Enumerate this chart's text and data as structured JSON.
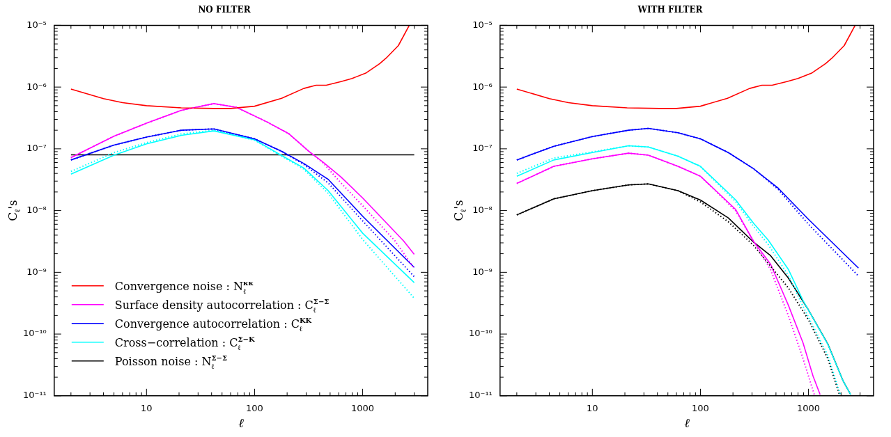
{
  "chart_data": [
    {
      "type": "line",
      "title": "NO FILTER",
      "xlabel": "ℓ",
      "ylabel": "C$_{ℓ}$'s",
      "log": "xy",
      "legend": "bottom left",
      "marker": "none",
      "line_style": "solid",
      "xlim": [
        1.4,
        4000
      ],
      "ylim": [
        1e-11,
        1e-05
      ],
      "xticks": [
        {
          "value": 2,
          "label": null
        },
        {
          "value": 3,
          "label": null
        },
        {
          "value": 4,
          "label": null
        },
        {
          "value": 5,
          "label": null
        },
        {
          "value": 6,
          "label": null
        },
        {
          "value": 7,
          "label": null
        },
        {
          "value": 8,
          "label": null
        },
        {
          "value": 9,
          "label": null
        },
        10,
        {
          "value": 20,
          "label": null
        },
        {
          "value": 30,
          "label": null
        },
        {
          "value": 40,
          "label": null
        },
        {
          "value": 50,
          "label": null
        },
        {
          "value": 60,
          "label": null
        },
        {
          "value": 70,
          "label": null
        },
        {
          "value": 80,
          "label": null
        },
        {
          "value": 90,
          "label": null
        },
        100,
        {
          "value": 200,
          "label": null
        },
        {
          "value": 300,
          "label": null
        },
        {
          "value": 400,
          "label": null
        },
        {
          "value": 500,
          "label": null
        },
        {
          "value": 600,
          "label": null
        },
        {
          "value": 700,
          "label": null
        },
        {
          "value": 800,
          "label": null
        },
        {
          "value": 900,
          "label": null
        },
        1000,
        {
          "value": 2000,
          "label": null
        },
        {
          "value": 3000,
          "label": null
        }
      ],
      "yticks": [
        {
          "value": 1e-11,
          "label": "10⁻¹¹"
        },
        {
          "value": 2e-11,
          "label": null
        },
        {
          "value": 3e-11,
          "label": null
        },
        {
          "value": 4e-11,
          "label": null
        },
        {
          "value": 5e-11,
          "label": null
        },
        {
          "value": 6e-11,
          "label": null
        },
        {
          "value": 7e-11,
          "label": null
        },
        {
          "value": 8e-11,
          "label": null
        },
        {
          "value": 9e-11,
          "label": null
        },
        {
          "value": 1e-10,
          "label": "10⁻¹⁰"
        },
        {
          "value": 2e-10,
          "label": null
        },
        {
          "value": 3e-10,
          "label": null
        },
        {
          "value": 4e-10,
          "label": null
        },
        {
          "value": 5e-10,
          "label": null
        },
        {
          "value": 6e-10,
          "label": null
        },
        {
          "value": 7e-10,
          "label": null
        },
        {
          "value": 8e-10,
          "label": null
        },
        {
          "value": 9e-10,
          "label": null
        },
        {
          "value": 1e-09,
          "label": "10⁻⁹"
        },
        {
          "value": 2e-09,
          "label": null
        },
        {
          "value": 3e-09,
          "label": null
        },
        {
          "value": 4e-09,
          "label": null
        },
        {
          "value": 5e-09,
          "label": null
        },
        {
          "value": 6e-09,
          "label": null
        },
        {
          "value": 7e-09,
          "label": null
        },
        {
          "value": 8e-09,
          "label": null
        },
        {
          "value": 9e-09,
          "label": null
        },
        {
          "value": 1e-08,
          "label": "10⁻⁸"
        },
        {
          "value": 2e-08,
          "label": null
        },
        {
          "value": 3e-08,
          "label": null
        },
        {
          "value": 4e-08,
          "label": null
        },
        {
          "value": 5e-08,
          "label": null
        },
        {
          "value": 6e-08,
          "label": null
        },
        {
          "value": 7e-08,
          "label": null
        },
        {
          "value": 8e-08,
          "label": null
        },
        {
          "value": 9e-08,
          "label": null
        },
        {
          "value": 1e-07,
          "label": "10⁻⁷"
        },
        {
          "value": 2e-07,
          "label": null
        },
        {
          "value": 3e-07,
          "label": null
        },
        {
          "value": 4e-07,
          "label": null
        },
        {
          "value": 5e-07,
          "label": null
        },
        {
          "value": 6e-07,
          "label": null
        },
        {
          "value": 7e-07,
          "label": null
        },
        {
          "value": 8e-07,
          "label": null
        },
        {
          "value": 9e-07,
          "label": null
        },
        {
          "value": 1e-06,
          "label": "10⁻⁶"
        },
        {
          "value": 2e-06,
          "label": null
        },
        {
          "value": 3e-06,
          "label": null
        },
        {
          "value": 4e-06,
          "label": null
        },
        {
          "value": 5e-06,
          "label": null
        },
        {
          "value": 6e-06,
          "label": null
        },
        {
          "value": 7e-06,
          "label": null
        },
        {
          "value": 8e-06,
          "label": null
        },
        {
          "value": 9e-06,
          "label": null
        },
        {
          "value": 1e-05,
          "label": "10⁻⁵"
        }
      ],
      "series": [
        {
          "name": "Convergence noise : N$_{ℓ}$$^{κκ}$",
          "color": "#ff0000",
          "x": [
            2,
            4,
            6,
            10,
            21,
            42,
            60,
            100,
            178,
            285,
            370,
            460,
            630,
            800,
            1080,
            1440,
            1650,
            2140,
            2700
          ],
          "values": [
            9.3e-07,
            6.5e-07,
            5.6e-07,
            5e-07,
            4.6e-07,
            4.5e-07,
            4.5e-07,
            4.9e-07,
            6.6e-07,
            9.5e-07,
            1.07e-06,
            1.07e-06,
            1.23e-06,
            1.38e-06,
            1.7e-06,
            2.4e-06,
            2.95e-06,
            4.7e-06,
            1e-05
          ]
        },
        {
          "name": "Surface density autocorrelation : C$_{ℓ}$$^{Σ−Σ}$",
          "color": "#ff00ff",
          "x": [
            2,
            5,
            10,
            21,
            42,
            68,
            129,
            208,
            316,
            435,
            630,
            1000,
            2400,
            3000
          ],
          "values": [
            7.2e-08,
            1.6e-07,
            2.6e-07,
            4.2e-07,
            5.4e-07,
            4.7e-07,
            2.75e-07,
            1.75e-07,
            9.2e-08,
            6e-08,
            3.5e-08,
            1.6e-08,
            3.2e-09,
            1.95e-09
          ]
        },
        {
          "name": "Convergence autocorrelation : C$_{ℓ}$$^{KK}$",
          "color": "#0000ff",
          "x": [
            2,
            5,
            10,
            21,
            42,
            100,
            178,
            285,
            480,
            1000,
            3000
          ],
          "values": [
            6.6e-08,
            1.15e-07,
            1.55e-07,
            2e-07,
            2.1e-07,
            1.45e-07,
            9.1e-08,
            5.8e-08,
            3.2e-08,
            8.1e-09,
            1.2e-09
          ]
        },
        {
          "name": "Cross−correlation : C$_{ℓ}$$^{Σ−K}$",
          "color": "#00ffff",
          "x": [
            2,
            5,
            10,
            21,
            42,
            100,
            178,
            285,
            480,
            1000,
            3000
          ],
          "values": [
            3.9e-08,
            7.9e-08,
            1.2e-07,
            1.65e-07,
            1.95e-07,
            1.4e-07,
            7.8e-08,
            4.9e-08,
            2.1e-08,
            4.3e-09,
            6.8e-10
          ]
        },
        {
          "name": "Poisson noise : N$_{ℓ}$$^{Σ−Σ}$",
          "color": "#000000",
          "x": [
            2,
            3000
          ],
          "values": [
            8e-08,
            8e-08
          ]
        },
        {
          "color": "#ff00ff",
          "line_style": "dotted",
          "x": [
            2,
            5,
            10,
            21,
            42,
            68,
            129,
            208,
            316,
            435,
            630,
            1000,
            2000,
            3000
          ],
          "values": [
            7.2e-08,
            1.6e-07,
            2.6e-07,
            4.2e-07,
            5.4e-07,
            4.7e-07,
            2.75e-07,
            1.75e-07,
            9.2e-08,
            5.8e-08,
            2.8e-08,
            1.2e-08,
            3.2e-09,
            1.15e-09
          ]
        },
        {
          "color": "#0000ff",
          "line_style": "dotted",
          "x": [
            2,
            5,
            10,
            21,
            42,
            100,
            178,
            285,
            480,
            1000,
            3000
          ],
          "values": [
            6.6e-08,
            1.15e-07,
            1.55e-07,
            2e-07,
            2.1e-07,
            1.45e-07,
            9.1e-08,
            5.6e-08,
            2.8e-08,
            6.8e-09,
            8.5e-10
          ]
        },
        {
          "color": "#00ffff",
          "line_style": "dotted",
          "x": [
            2,
            5,
            10,
            21,
            42,
            100,
            178,
            285,
            480,
            1000,
            3000
          ],
          "values": [
            4.3e-08,
            8.7e-08,
            1.26e-07,
            1.74e-07,
            2e-07,
            1.38e-07,
            7.6e-08,
            4.7e-08,
            1.9e-08,
            3.4e-09,
            3.8e-10
          ]
        }
      ]
    },
    {
      "type": "line",
      "title": "WITH FILTER",
      "xlabel": "ℓ",
      "ylabel": "C$_{ℓ}$'s",
      "log": "xy",
      "marker": "none",
      "line_style": "solid",
      "xlim": [
        1.4,
        4000
      ],
      "ylim": [
        1e-11,
        1e-05
      ],
      "xticks": [
        {
          "value": 2,
          "label": null
        },
        {
          "value": 3,
          "label": null
        },
        {
          "value": 4,
          "label": null
        },
        {
          "value": 5,
          "label": null
        },
        {
          "value": 6,
          "label": null
        },
        {
          "value": 7,
          "label": null
        },
        {
          "value": 8,
          "label": null
        },
        {
          "value": 9,
          "label": null
        },
        10,
        {
          "value": 20,
          "label": null
        },
        {
          "value": 30,
          "label": null
        },
        {
          "value": 40,
          "label": null
        },
        {
          "value": 50,
          "label": null
        },
        {
          "value": 60,
          "label": null
        },
        {
          "value": 70,
          "label": null
        },
        {
          "value": 80,
          "label": null
        },
        {
          "value": 90,
          "label": null
        },
        100,
        {
          "value": 200,
          "label": null
        },
        {
          "value": 300,
          "label": null
        },
        {
          "value": 400,
          "label": null
        },
        {
          "value": 500,
          "label": null
        },
        {
          "value": 600,
          "label": null
        },
        {
          "value": 700,
          "label": null
        },
        {
          "value": 800,
          "label": null
        },
        {
          "value": 900,
          "label": null
        },
        1000,
        {
          "value": 2000,
          "label": null
        },
        {
          "value": 3000,
          "label": null
        }
      ],
      "yticks": [
        {
          "value": 1e-11,
          "label": "10⁻¹¹"
        },
        {
          "value": 2e-11,
          "label": null
        },
        {
          "value": 3e-11,
          "label": null
        },
        {
          "value": 4e-11,
          "label": null
        },
        {
          "value": 5e-11,
          "label": null
        },
        {
          "value": 6e-11,
          "label": null
        },
        {
          "value": 7e-11,
          "label": null
        },
        {
          "value": 8e-11,
          "label": null
        },
        {
          "value": 9e-11,
          "label": null
        },
        {
          "value": 1e-10,
          "label": "10⁻¹⁰"
        },
        {
          "value": 2e-10,
          "label": null
        },
        {
          "value": 3e-10,
          "label": null
        },
        {
          "value": 4e-10,
          "label": null
        },
        {
          "value": 5e-10,
          "label": null
        },
        {
          "value": 6e-10,
          "label": null
        },
        {
          "value": 7e-10,
          "label": null
        },
        {
          "value": 8e-10,
          "label": null
        },
        {
          "value": 9e-10,
          "label": null
        },
        {
          "value": 1e-09,
          "label": "10⁻⁹"
        },
        {
          "value": 2e-09,
          "label": null
        },
        {
          "value": 3e-09,
          "label": null
        },
        {
          "value": 4e-09,
          "label": null
        },
        {
          "value": 5e-09,
          "label": null
        },
        {
          "value": 6e-09,
          "label": null
        },
        {
          "value": 7e-09,
          "label": null
        },
        {
          "value": 8e-09,
          "label": null
        },
        {
          "value": 9e-09,
          "label": null
        },
        {
          "value": 1e-08,
          "label": "10⁻⁸"
        },
        {
          "value": 2e-08,
          "label": null
        },
        {
          "value": 3e-08,
          "label": null
        },
        {
          "value": 4e-08,
          "label": null
        },
        {
          "value": 5e-08,
          "label": null
        },
        {
          "value": 6e-08,
          "label": null
        },
        {
          "value": 7e-08,
          "label": null
        },
        {
          "value": 8e-08,
          "label": null
        },
        {
          "value": 9e-08,
          "label": null
        },
        {
          "value": 1e-07,
          "label": "10⁻⁷"
        },
        {
          "value": 2e-07,
          "label": null
        },
        {
          "value": 3e-07,
          "label": null
        },
        {
          "value": 4e-07,
          "label": null
        },
        {
          "value": 5e-07,
          "label": null
        },
        {
          "value": 6e-07,
          "label": null
        },
        {
          "value": 7e-07,
          "label": null
        },
        {
          "value": 8e-07,
          "label": null
        },
        {
          "value": 9e-07,
          "label": null
        },
        {
          "value": 1e-06,
          "label": "10⁻⁶"
        },
        {
          "value": 2e-06,
          "label": null
        },
        {
          "value": 3e-06,
          "label": null
        },
        {
          "value": 4e-06,
          "label": null
        },
        {
          "value": 5e-06,
          "label": null
        },
        {
          "value": 6e-06,
          "label": null
        },
        {
          "value": 7e-06,
          "label": null
        },
        {
          "value": 8e-06,
          "label": null
        },
        {
          "value": 9e-06,
          "label": null
        },
        {
          "value": 1e-05,
          "label": "10⁻⁵"
        }
      ],
      "series": [
        {
          "color": "#ff0000",
          "x": [
            2,
            4,
            6,
            10,
            21,
            42,
            60,
            100,
            178,
            285,
            370,
            460,
            630,
            800,
            1080,
            1440,
            1650,
            2140,
            2700
          ],
          "values": [
            9.3e-07,
            6.5e-07,
            5.6e-07,
            5e-07,
            4.6e-07,
            4.5e-07,
            4.5e-07,
            4.9e-07,
            6.6e-07,
            9.5e-07,
            1.07e-06,
            1.07e-06,
            1.23e-06,
            1.38e-06,
            1.7e-06,
            2.4e-06,
            2.95e-06,
            4.7e-06,
            1e-05
          ]
        },
        {
          "color": "#0000ff",
          "x": [
            2,
            4.4,
            10,
            21.6,
            33,
            62,
            100,
            181,
            308,
            525,
            1000,
            2900
          ],
          "values": [
            6.6e-08,
            1.1e-07,
            1.58e-07,
            2e-07,
            2.14e-07,
            1.82e-07,
            1.45e-07,
            8.7e-08,
            4.8e-08,
            2.3e-08,
            7.2e-09,
            1.17e-09
          ]
        },
        {
          "color": "#00ffff",
          "x": [
            2,
            4.4,
            10,
            21.6,
            33,
            62,
            100,
            211,
            309,
            425,
            650,
            890,
            1510,
            2090,
            2450
          ],
          "values": [
            3.6e-08,
            6.6e-08,
            8.7e-08,
            1.12e-07,
            1.07e-07,
            7.6e-08,
            5.2e-08,
            1.5e-08,
            6.3e-09,
            3.3e-09,
            1.12e-09,
            3.5e-10,
            6.8e-11,
            1.74e-11,
            1.05e-11
          ]
        },
        {
          "color": "#ff00ff",
          "x": [
            2,
            4.4,
            10,
            21.6,
            33,
            62,
            100,
            211,
            309,
            446,
            650,
            890,
            1100,
            1280
          ],
          "values": [
            2.75e-08,
            5.2e-08,
            6.9e-08,
            8.5e-08,
            7.9e-08,
            5.2e-08,
            3.6e-08,
            1.05e-08,
            3.2e-09,
            1.35e-09,
            2.95e-10,
            7.2e-11,
            2.1e-11,
            1.05e-11
          ]
        },
        {
          "color": "#000000",
          "x": [
            2,
            4.4,
            10,
            21.6,
            33,
            62,
            100,
            181,
            309,
            446,
            650,
            1000,
            1510,
            2090,
            2450
          ],
          "values": [
            8.5e-09,
            1.55e-08,
            2.1e-08,
            2.6e-08,
            2.7e-08,
            2.1e-08,
            1.48e-08,
            7.6e-09,
            3.1e-09,
            1.86e-09,
            8.1e-10,
            2.45e-10,
            6.9e-11,
            1.74e-11,
            1.05e-11
          ]
        },
        {
          "color": "#0000ff",
          "line_style": "dotted",
          "x": [
            2,
            4.4,
            10,
            21.6,
            33,
            62,
            100,
            181,
            308,
            525,
            1000,
            2900
          ],
          "values": [
            6.6e-08,
            1.1e-07,
            1.58e-07,
            2e-07,
            2.14e-07,
            1.82e-07,
            1.45e-07,
            8.7e-08,
            4.8e-08,
            2.2e-08,
            6e-09,
            8.7e-10
          ]
        },
        {
          "color": "#00ffff",
          "line_style": "dotted",
          "x": [
            2,
            4.4,
            10,
            21.6,
            33,
            62,
            100,
            211,
            309,
            425,
            650,
            890,
            1510,
            1970
          ],
          "values": [
            4e-08,
            7.1e-08,
            8.9e-08,
            1.12e-07,
            1.07e-07,
            7.6e-08,
            5.2e-08,
            1.4e-08,
            5.6e-09,
            2.8e-09,
            8.9e-10,
            2.8e-10,
            4.5e-11,
            1.05e-11
          ]
        },
        {
          "color": "#ff00ff",
          "line_style": "dotted",
          "x": [
            2,
            4.4,
            10,
            21.6,
            33,
            62,
            100,
            211,
            309,
            446,
            650,
            890,
            1130
          ],
          "values": [
            2.75e-08,
            5.2e-08,
            6.9e-08,
            8.5e-08,
            7.9e-08,
            5.2e-08,
            3.6e-08,
            1e-08,
            3.2e-09,
            1.1e-09,
            2e-10,
            4e-11,
            1.05e-11
          ]
        },
        {
          "color": "#000000",
          "line_style": "dotted",
          "x": [
            2,
            4.4,
            10,
            21.6,
            33,
            62,
            100,
            181,
            309,
            650,
            1000,
            1510,
            1930
          ],
          "values": [
            8.5e-09,
            1.55e-08,
            2.1e-08,
            2.6e-08,
            2.7e-08,
            2.1e-08,
            1.38e-08,
            6.6e-09,
            2.75e-09,
            5.6e-10,
            1.7e-10,
            4e-11,
            1.05e-11
          ]
        }
      ]
    }
  ]
}
